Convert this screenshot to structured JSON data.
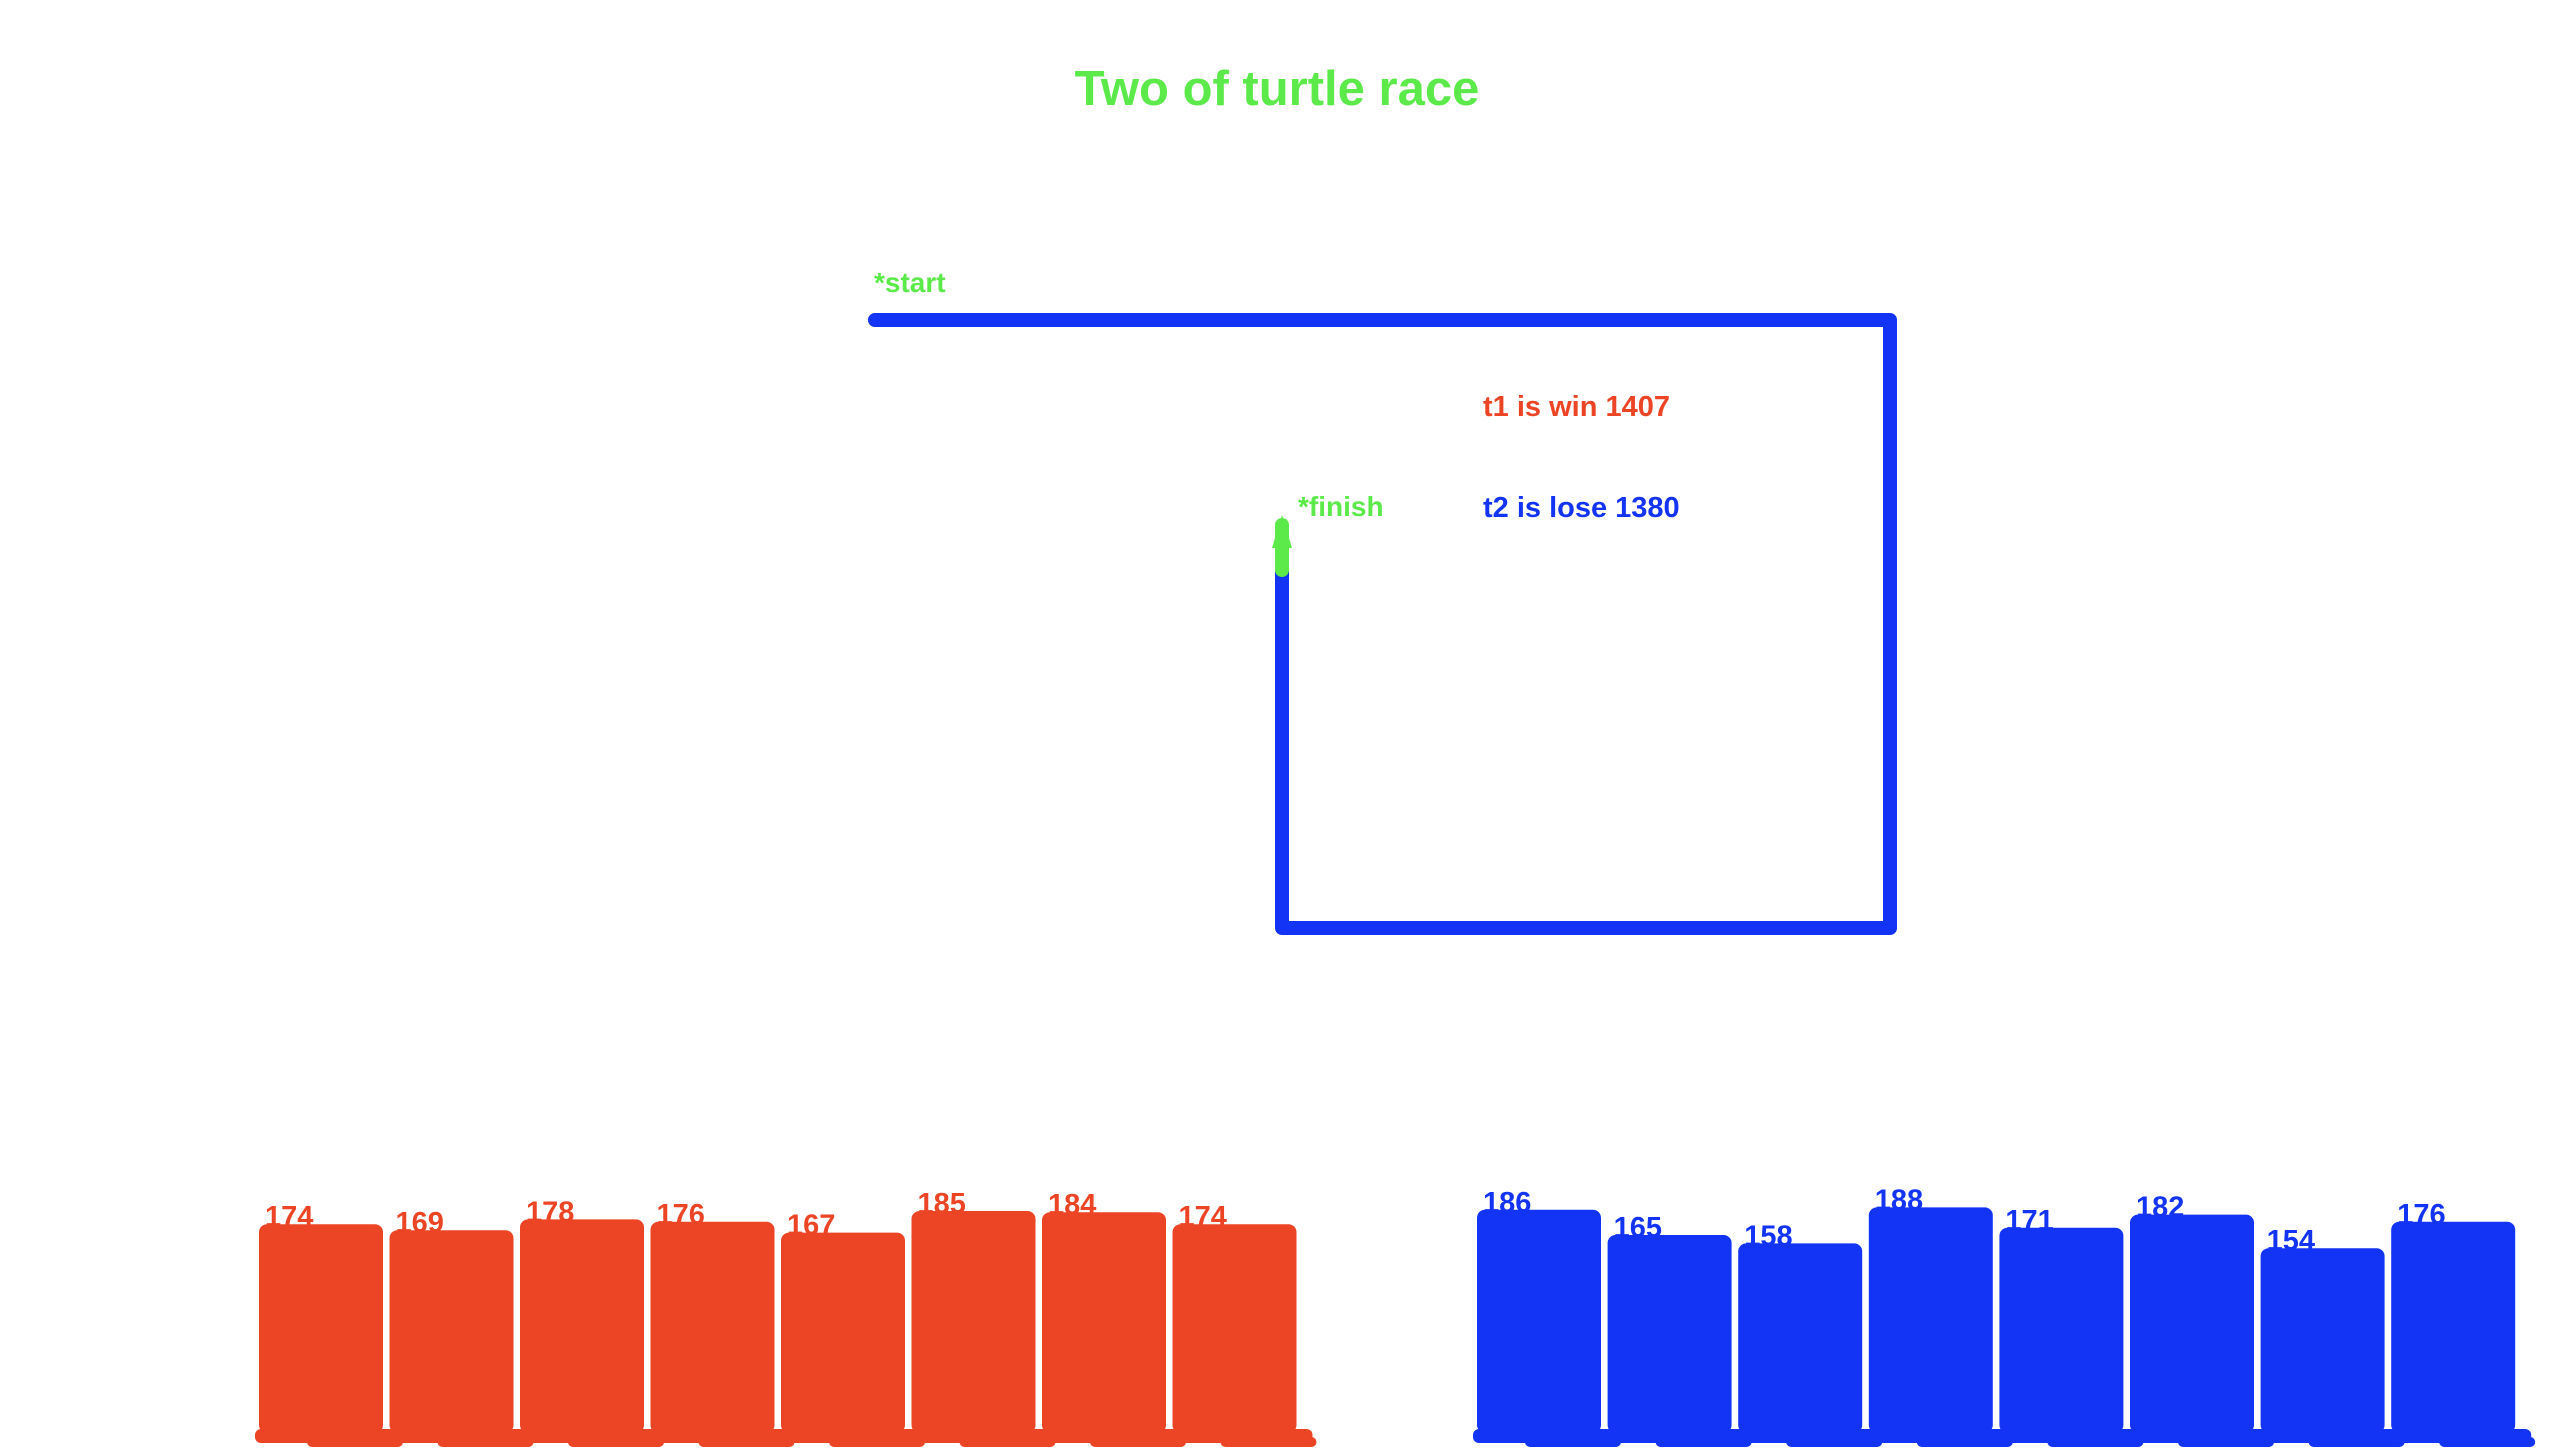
{
  "title": "Two of turtle race",
  "track": {
    "start_label": "*start",
    "finish_label": "*finish"
  },
  "results": {
    "t1": "t1 is win 1407",
    "t2": "t2 is lose 1380"
  },
  "colors": {
    "title": "#5cea4a",
    "labels": "#5cea4a",
    "turtle1": "#ec4525",
    "turtle2": "#1434f5",
    "track": "#1434f5",
    "finish_marker": "#5cea4a"
  },
  "chart_data": [
    {
      "type": "bar",
      "series": [
        {
          "name": "t1",
          "values": [
            174,
            169,
            178,
            176,
            167,
            185,
            184,
            174
          ]
        }
      ],
      "total": 1407
    },
    {
      "type": "bar",
      "series": [
        {
          "name": "t2",
          "values": [
            186,
            165,
            158,
            188,
            171,
            182,
            154,
            176
          ]
        }
      ],
      "total": 1380
    }
  ]
}
